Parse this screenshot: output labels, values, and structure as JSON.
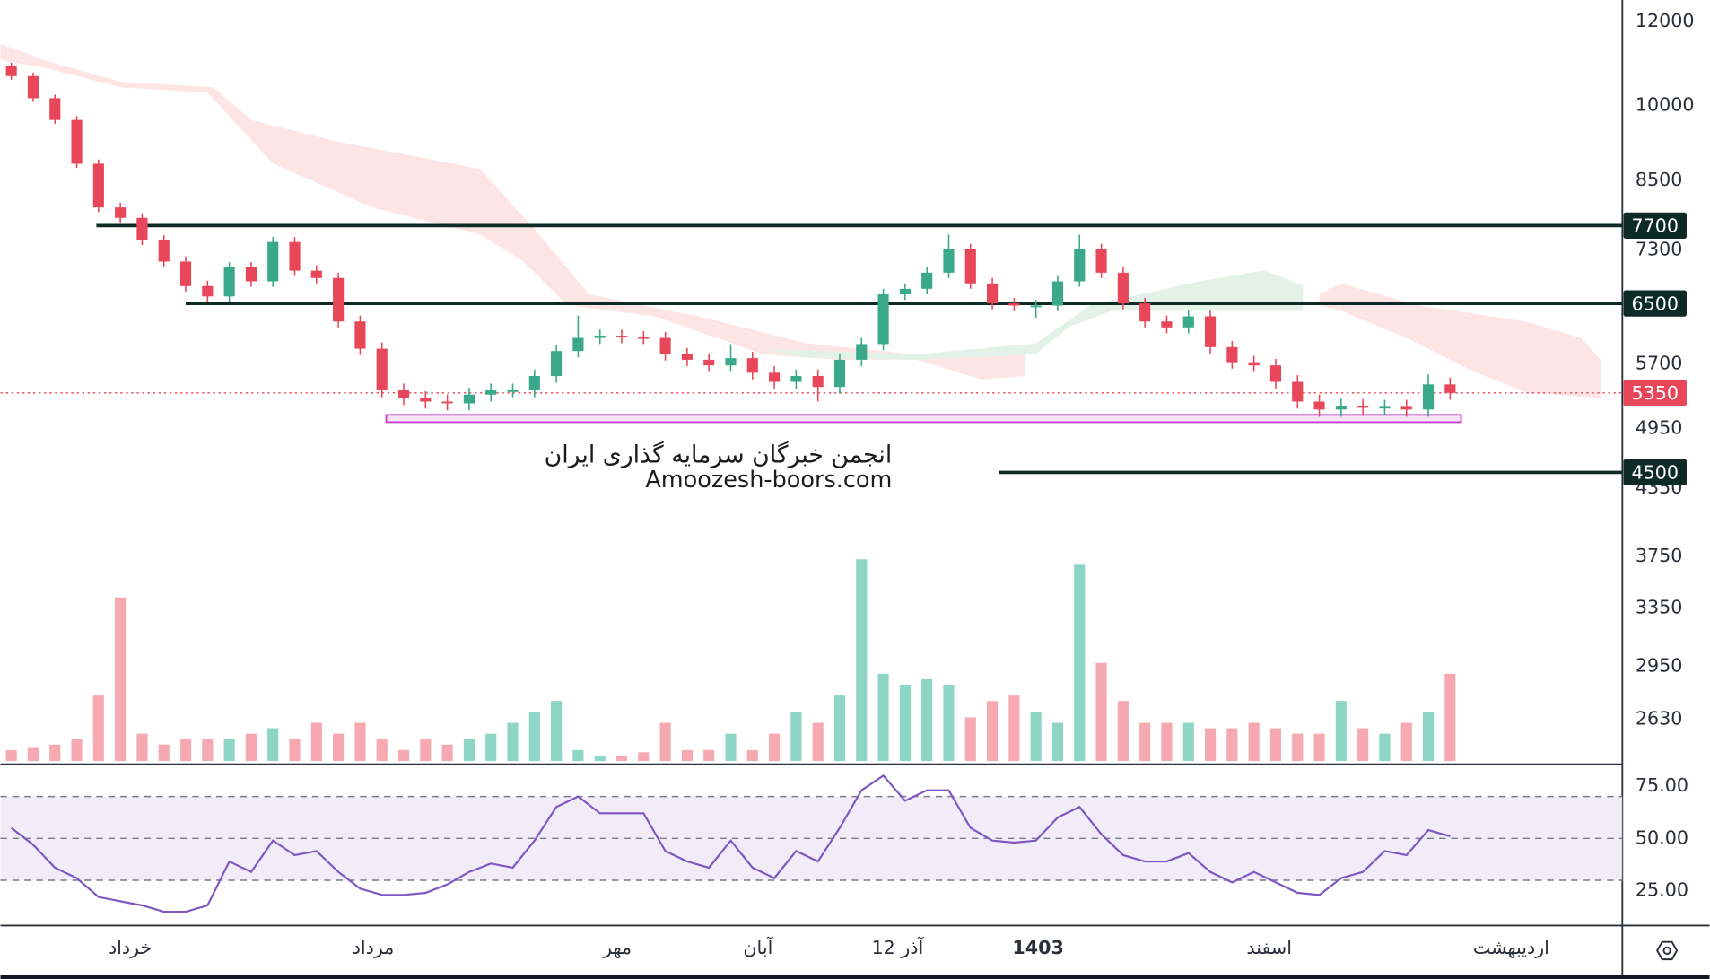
{
  "chart_data": {
    "type": "candlestick",
    "watermark": [
      "انجمن خبرگان سرمایه گذاری ایران",
      "Amoozesh-boors.com"
    ],
    "open": [
      10900,
      10660,
      10160,
      9690,
      8810,
      8010,
      7830,
      7460,
      7120,
      6750,
      6600,
      7030,
      6820,
      7430,
      6980,
      6870,
      6250,
      5890,
      5380,
      5290,
      5250,
      5230,
      5330,
      5380,
      5380,
      5550,
      5860,
      6030,
      6060,
      6040,
      6030,
      5820,
      5750,
      5680,
      5770,
      5590,
      5480,
      5550,
      5420,
      5750,
      5950,
      6630,
      6710,
      6950,
      7320,
      6790,
      6500,
      6470,
      6470,
      6820,
      7320,
      6950,
      6500,
      6250,
      6170,
      6320,
      5910,
      5720,
      5680,
      5480,
      5250,
      5160,
      5200,
      5180,
      5190,
      5160,
      5450
    ],
    "high": [
      10980,
      10740,
      10240,
      9770,
      8890,
      8090,
      7910,
      7540,
      7200,
      6830,
      7110,
      7110,
      7510,
      7510,
      7060,
      6950,
      6330,
      5970,
      5460,
      5370,
      5330,
      5410,
      5460,
      5460,
      5630,
      5940,
      6330,
      6140,
      6140,
      6120,
      6110,
      5900,
      5830,
      5950,
      5850,
      5670,
      5630,
      5630,
      5830,
      6030,
      6710,
      6790,
      7030,
      7550,
      7400,
      6870,
      6580,
      6550,
      6900,
      7550,
      7400,
      7030,
      6580,
      6330,
      6400,
      6400,
      5990,
      5800,
      5760,
      5560,
      5330,
      5280,
      5280,
      5270,
      5270,
      5570,
      5530
    ],
    "low": [
      10580,
      10080,
      9610,
      8730,
      7930,
      7750,
      7380,
      7040,
      6670,
      6520,
      6520,
      6740,
      6740,
      6900,
      6790,
      6170,
      5810,
      5300,
      5210,
      5170,
      5150,
      5150,
      5250,
      5300,
      5300,
      5470,
      5780,
      5950,
      5960,
      5950,
      5740,
      5670,
      5600,
      5600,
      5510,
      5400,
      5400,
      5250,
      5340,
      5670,
      5870,
      6550,
      6630,
      6870,
      6710,
      6420,
      6390,
      6300,
      6390,
      6740,
      6870,
      6420,
      6170,
      6090,
      6090,
      5830,
      5640,
      5600,
      5400,
      5170,
      5080,
      5080,
      5100,
      5100,
      5080,
      5080,
      5270
    ],
    "close": [
      10660,
      10160,
      9690,
      8810,
      8010,
      7830,
      7460,
      7120,
      6750,
      6600,
      7030,
      6820,
      7430,
      6980,
      6870,
      6250,
      5890,
      5380,
      5290,
      5250,
      5230,
      5330,
      5380,
      5380,
      5550,
      5860,
      6030,
      6060,
      6040,
      6030,
      5820,
      5750,
      5680,
      5770,
      5590,
      5480,
      5550,
      5420,
      5750,
      5950,
      6630,
      6710,
      6950,
      7320,
      6790,
      6500,
      6470,
      6470,
      6820,
      7320,
      6950,
      6500,
      6250,
      6170,
      6320,
      5910,
      5720,
      5680,
      5480,
      5250,
      5160,
      5200,
      5180,
      5190,
      5160,
      5450,
      5350
    ],
    "up_color": "#3aa88a",
    "down_color": "#e8475a",
    "ylim": [
      2390,
      12580
    ],
    "log_scale": true,
    "yticks": [
      12000,
      10000,
      8500,
      7300,
      5700,
      4950,
      4350,
      3750,
      3350,
      2950,
      2630
    ],
    "xlim": [
      -0.5,
      73.9
    ],
    "xticks": [
      {
        "value": 5.45,
        "label": "خرداد"
      },
      {
        "value": 16.6,
        "label": "مرداد"
      },
      {
        "value": 27.8,
        "label": "مهر"
      },
      {
        "value": 34.25,
        "label": "آبان"
      },
      {
        "value": 40.65,
        "label": "12 آذر"
      },
      {
        "value": 47.1,
        "label": "1403",
        "bold": true
      },
      {
        "value": 57.7,
        "label": "اسفند"
      },
      {
        "value": 68.8,
        "label": "اردیبهشت"
      }
    ],
    "levels": [
      {
        "value": 7700,
        "from": 3.9
      },
      {
        "value": 6500,
        "from": 8
      },
      {
        "value": 4500,
        "from": 45.3
      }
    ],
    "level_color": "#0d2a24",
    "last_price": 5350,
    "support_zone": {
      "low": 5020,
      "high": 5100,
      "from": 17.2,
      "to": 66.5,
      "color": "#c03fc8"
    },
    "volume": {
      "values": [
        10,
        12,
        15,
        20,
        60,
        150,
        25,
        15,
        20,
        20,
        20,
        25,
        30,
        20,
        35,
        25,
        35,
        20,
        10,
        20,
        15,
        20,
        25,
        35,
        45,
        55,
        10,
        5,
        5,
        8,
        35,
        10,
        10,
        25,
        10,
        25,
        45,
        35,
        60,
        185,
        80,
        70,
        75,
        70,
        40,
        55,
        60,
        45,
        35,
        180,
        90,
        55,
        35,
        35,
        35,
        30,
        30,
        35,
        30,
        25,
        25,
        55,
        30,
        25,
        35,
        45,
        80
      ],
      "ylim": [
        0,
        200
      ],
      "up_color": "#8dd5c4",
      "down_color": "#f6a9b0"
    },
    "rsi": {
      "values": [
        55,
        47,
        36,
        31,
        22,
        20,
        18,
        15,
        15,
        18,
        39,
        34,
        49,
        42,
        44,
        34,
        26,
        23,
        23,
        24,
        28,
        34,
        38,
        36,
        49,
        65,
        70,
        62,
        62,
        62,
        44,
        39,
        36,
        49,
        36,
        31,
        44,
        39,
        55,
        73,
        80,
        68,
        73,
        73,
        55,
        49,
        48,
        49,
        60,
        65,
        52,
        42,
        39,
        39,
        43,
        34,
        29,
        34,
        29,
        24,
        23,
        31,
        34,
        44,
        42,
        54,
        51
      ],
      "ylim": [
        8.9,
        84.9
      ],
      "color": "#7e57c2",
      "yticks": [
        {
          "value": 75,
          "label": "75.00"
        },
        {
          "value": 50,
          "label": "50.00"
        },
        {
          "value": 25,
          "label": "25.00"
        }
      ],
      "band": [
        30,
        70
      ],
      "midline": 50
    }
  }
}
